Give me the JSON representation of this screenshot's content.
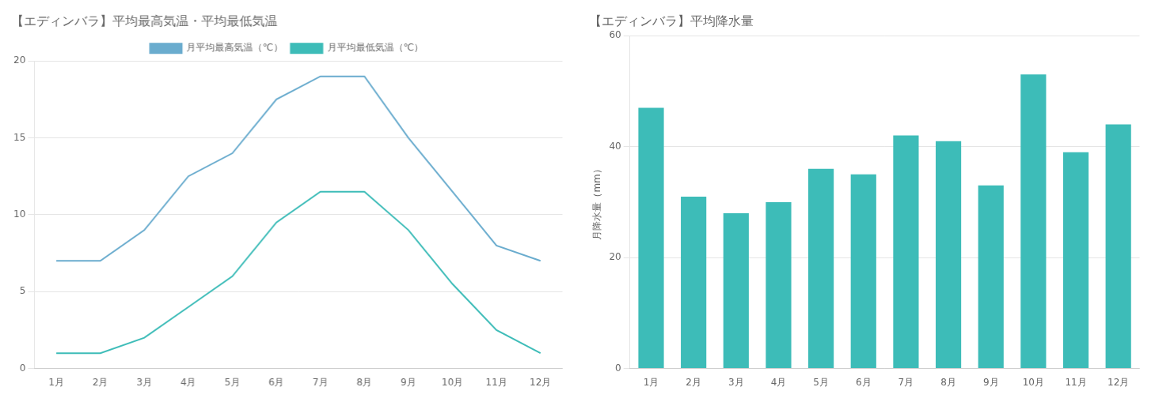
{
  "chart_data": [
    {
      "type": "line",
      "title": "【エディンバラ】平均最高気温・平均最低気温",
      "categories": [
        "1月",
        "2月",
        "3月",
        "4月",
        "5月",
        "6月",
        "7月",
        "8月",
        "9月",
        "10月",
        "11月",
        "12月"
      ],
      "series": [
        {
          "name": "月平均最高気温（℃）",
          "color": "#6aacce",
          "marker": "none",
          "values": [
            7.0,
            7.0,
            9.0,
            12.5,
            14.0,
            17.5,
            19.0,
            19.0,
            15.0,
            11.5,
            8.0,
            7.0
          ]
        },
        {
          "name": "月平均最低気温（℃）",
          "color": "#3dbcb8",
          "marker": "none",
          "values": [
            1.0,
            1.0,
            2.0,
            4.0,
            6.0,
            9.5,
            11.5,
            11.5,
            9.0,
            5.5,
            2.5,
            1.0
          ]
        }
      ],
      "ylim": [
        0,
        20
      ],
      "yticks": [
        0,
        5,
        10,
        15,
        20
      ],
      "grid": true,
      "legend": "top"
    },
    {
      "type": "bar",
      "title": "【エディンバラ】平均降水量",
      "y_label": "月降水量（mm）",
      "categories": [
        "1月",
        "2月",
        "3月",
        "4月",
        "5月",
        "6月",
        "7月",
        "8月",
        "9月",
        "10月",
        "11月",
        "12月"
      ],
      "values": [
        47,
        31,
        28,
        30,
        36,
        35,
        42,
        41,
        33,
        53,
        39,
        44
      ],
      "color": "#3dbcb8",
      "ylim": [
        0,
        60
      ],
      "yticks": [
        0,
        20,
        40,
        60
      ],
      "grid": true
    }
  ]
}
